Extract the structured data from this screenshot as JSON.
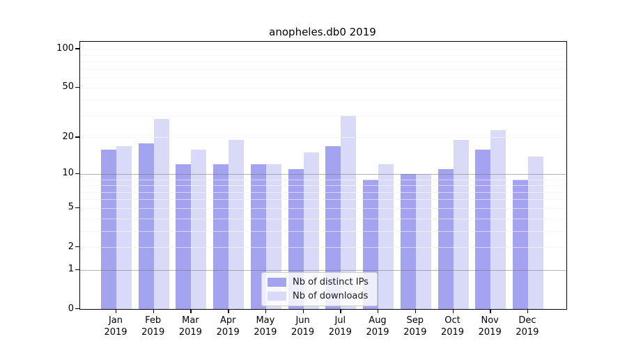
{
  "title": "anopheles.db0 2019",
  "chart_data": {
    "type": "bar",
    "scale": "log1p",
    "title": "anopheles.db0 2019",
    "xlabel": "",
    "ylabel": "",
    "categories": [
      "Jan",
      "Feb",
      "Mar",
      "Apr",
      "May",
      "Jun",
      "Jul",
      "Aug",
      "Sep",
      "Oct",
      "Nov",
      "Dec"
    ],
    "category_year": "2019",
    "series": [
      {
        "name": "Nb of distinct IPs",
        "color": "#a3a3f0",
        "values": [
          16,
          18,
          12,
          12,
          12,
          11,
          17,
          9,
          10,
          11,
          16,
          9
        ]
      },
      {
        "name": "Nb of downloads",
        "color": "#d9d9f8",
        "values": [
          17,
          28,
          16,
          19,
          12,
          15,
          30,
          12,
          10,
          19,
          23,
          14
        ]
      }
    ],
    "y_ticks": [
      100,
      50,
      20,
      10,
      5,
      2,
      1,
      0
    ],
    "y_minor_gridlines": [
      2,
      3,
      4,
      5,
      6,
      7,
      8,
      9,
      20,
      30,
      40,
      50,
      60,
      70,
      80,
      90,
      100
    ],
    "y_major_gridlines": [
      1,
      10
    ],
    "ylim": [
      0,
      115
    ],
    "grid": true,
    "legend_position": "bottom-center"
  },
  "legend": {
    "items": [
      {
        "label": "Nb of distinct IPs"
      },
      {
        "label": "Nb of downloads"
      }
    ]
  }
}
